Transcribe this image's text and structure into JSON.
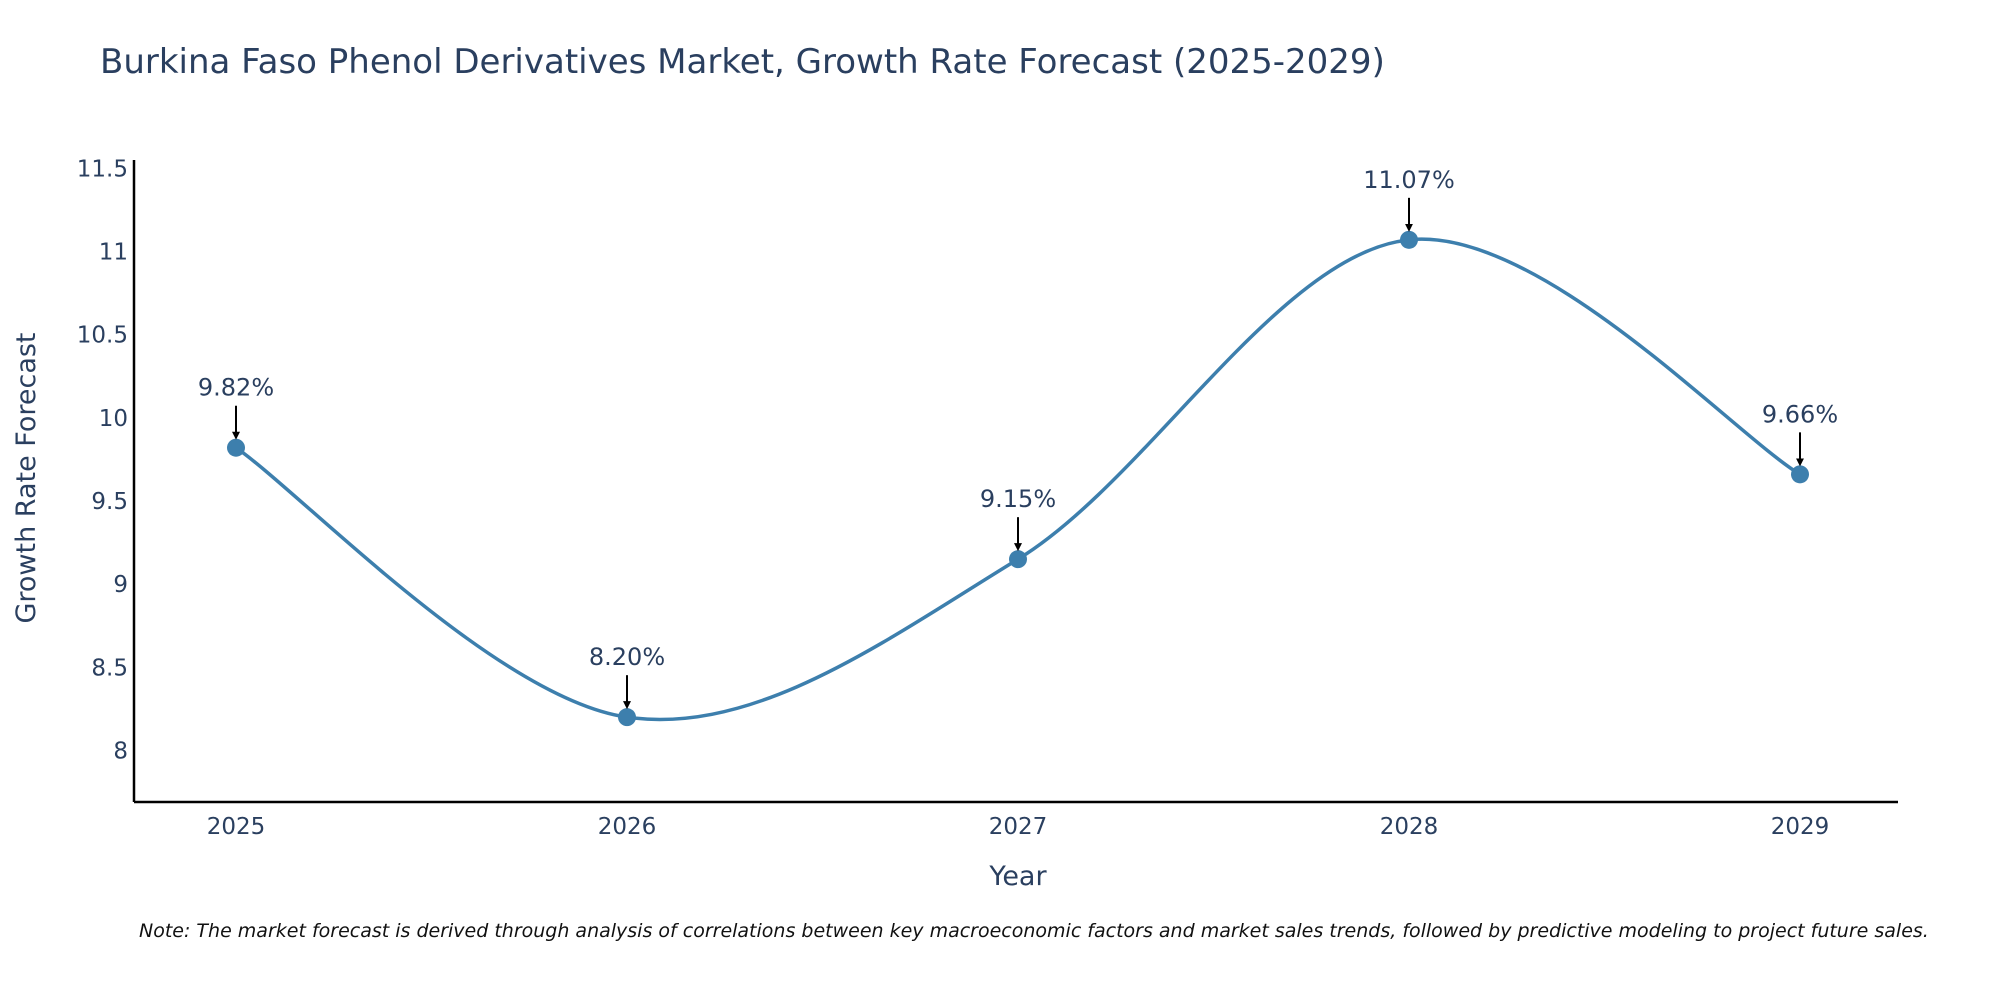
{
  "chart_data": {
    "type": "line",
    "title": "Burkina Faso Phenol Derivatives Market, Growth Rate Forecast (2025-2029)",
    "xlabel": "Year",
    "ylabel": "Growth Rate Forecast",
    "x": [
      "2025",
      "2026",
      "2027",
      "2028",
      "2029"
    ],
    "series": [
      {
        "name": "Growth Rate Forecast",
        "values": [
          9.82,
          8.2,
          9.15,
          11.07,
          9.66
        ],
        "labels": [
          "9.82%",
          "8.20%",
          "9.15%",
          "11.07%",
          "9.66%"
        ],
        "color": "#3d7fad"
      }
    ],
    "yticks": [
      "8",
      "8.5",
      "9",
      "9.5",
      "10",
      "10.5",
      "11",
      "11.5"
    ],
    "ylim": [
      7.69,
      11.55
    ],
    "grid": false,
    "line_shape": "spline",
    "annotation_arrow_color": "#000000",
    "note": "Note: The market forecast is derived through analysis of correlations between key macroeconomic factors and market sales trends, followed by predictive modeling to project future sales."
  }
}
